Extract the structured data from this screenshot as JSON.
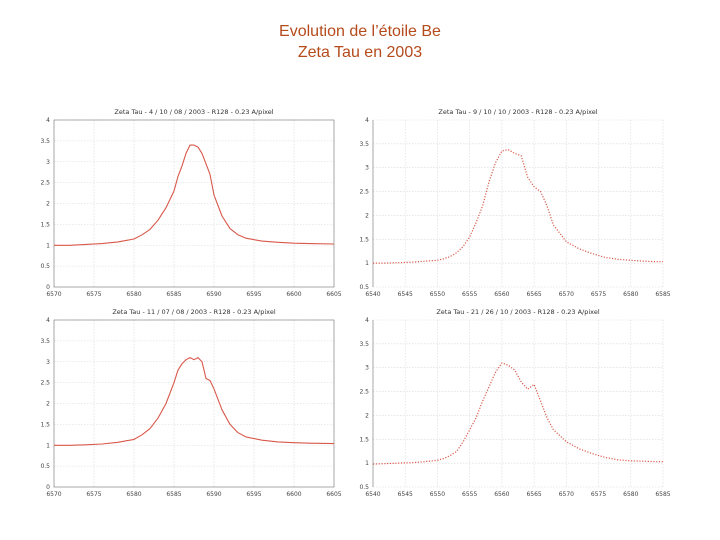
{
  "slide": {
    "title_line1": "Evolution de l’étoile Be",
    "title_line2": "Zeta Tau en 2003"
  },
  "colors": {
    "title": "#b54a1a",
    "curve": "#d9584a"
  },
  "chart_data": [
    {
      "type": "line",
      "title": "Zeta Tau - 4 / 10 / 08 / 2003 - R128 - 0.23 A/pixel",
      "xlabel": "",
      "ylabel": "",
      "xlim": [
        6570,
        6605
      ],
      "ylim": [
        0,
        4
      ],
      "xticks": [
        "6570",
        "6575",
        "6580",
        "6585",
        "6590",
        "6595",
        "6600",
        "6605"
      ],
      "yticks": [
        "0",
        "0.5",
        "1",
        "1.5",
        "2",
        "2.5",
        "3",
        "3.5",
        "4"
      ],
      "grid": true,
      "frame": "box",
      "line_style": "solid",
      "x": [
        6570,
        6572,
        6574,
        6576,
        6578,
        6580,
        6581,
        6582,
        6583,
        6584,
        6585,
        6585.5,
        6586,
        6586.5,
        6587,
        6587.5,
        6588,
        6588.5,
        6589,
        6589.5,
        6590,
        6591,
        6592,
        6593,
        6594,
        6596,
        6598,
        6600,
        6602,
        6605
      ],
      "y": [
        1.0,
        1.0,
        1.02,
        1.04,
        1.08,
        1.15,
        1.25,
        1.38,
        1.6,
        1.9,
        2.3,
        2.65,
        2.9,
        3.2,
        3.4,
        3.4,
        3.35,
        3.2,
        2.95,
        2.7,
        2.2,
        1.7,
        1.4,
        1.25,
        1.17,
        1.1,
        1.07,
        1.05,
        1.04,
        1.03
      ]
    },
    {
      "type": "line",
      "title": "Zeta Tau - 9 / 10 / 10 / 2003 - R128 - 0.23 A/pixel",
      "xlabel": "",
      "ylabel": "",
      "xlim": [
        6540,
        6585
      ],
      "ylim": [
        0.5,
        4
      ],
      "xticks": [
        "6540",
        "6545",
        "6550",
        "6555",
        "6560",
        "6565",
        "6570",
        "6575",
        "6580",
        "6585"
      ],
      "yticks": [
        "0.5",
        "1",
        "1.5",
        "2",
        "2.5",
        "3",
        "3.5",
        "4"
      ],
      "grid": true,
      "frame": "left",
      "line_style": "dotted",
      "x": [
        6540,
        6542,
        6544,
        6546,
        6548,
        6550,
        6551,
        6552,
        6553,
        6554,
        6555,
        6556,
        6557,
        6558,
        6559,
        6560,
        6561,
        6562,
        6563,
        6564,
        6565,
        6566,
        6567,
        6568,
        6570,
        6572,
        6574,
        6576,
        6578,
        6580,
        6582,
        6584,
        6585
      ],
      "y": [
        1.0,
        1.0,
        1.01,
        1.02,
        1.04,
        1.06,
        1.09,
        1.14,
        1.22,
        1.35,
        1.55,
        1.85,
        2.2,
        2.7,
        3.1,
        3.35,
        3.38,
        3.3,
        3.25,
        2.8,
        2.6,
        2.5,
        2.2,
        1.8,
        1.45,
        1.3,
        1.2,
        1.12,
        1.08,
        1.06,
        1.04,
        1.03,
        1.03
      ]
    },
    {
      "type": "line",
      "title": "Zeta Tau - 11 / 07 / 08 / 2003 - R128 - 0.23 A/pixel",
      "xlabel": "",
      "ylabel": "",
      "xlim": [
        6570,
        6605
      ],
      "ylim": [
        0,
        4
      ],
      "xticks": [
        "6570",
        "6575",
        "6580",
        "6585",
        "6590",
        "6595",
        "6600",
        "6605"
      ],
      "yticks": [
        "0",
        "0.5",
        "1",
        "1.5",
        "2",
        "2.5",
        "3",
        "3.5",
        "4"
      ],
      "grid": true,
      "frame": "box",
      "line_style": "solid",
      "x": [
        6570,
        6572,
        6574,
        6576,
        6578,
        6580,
        6581,
        6582,
        6583,
        6584,
        6585,
        6585.5,
        6586,
        6586.5,
        6587,
        6587.5,
        6588,
        6588.5,
        6589,
        6589.5,
        6590,
        6591,
        6592,
        6593,
        6594,
        6596,
        6598,
        6600,
        6602,
        6605
      ],
      "y": [
        1.0,
        1.0,
        1.01,
        1.03,
        1.07,
        1.14,
        1.25,
        1.4,
        1.65,
        2.0,
        2.5,
        2.8,
        2.95,
        3.05,
        3.1,
        3.05,
        3.1,
        3.0,
        2.6,
        2.55,
        2.35,
        1.85,
        1.5,
        1.3,
        1.2,
        1.12,
        1.08,
        1.06,
        1.05,
        1.04
      ]
    },
    {
      "type": "line",
      "title": "Zeta Tau - 21 / 26 / 10 / 2003 - R128 - 0.23 A/pixel",
      "xlabel": "",
      "ylabel": "",
      "xlim": [
        6540,
        6585
      ],
      "ylim": [
        0.5,
        4
      ],
      "xticks": [
        "6540",
        "6545",
        "6550",
        "6555",
        "6560",
        "6565",
        "6570",
        "6575",
        "6580",
        "6585"
      ],
      "yticks": [
        "0.5",
        "1",
        "1.5",
        "2",
        "2.5",
        "3",
        "3.5",
        "4"
      ],
      "grid": true,
      "frame": "left",
      "line_style": "dotted",
      "x": [
        6540,
        6542,
        6544,
        6546,
        6548,
        6550,
        6551,
        6552,
        6553,
        6554,
        6555,
        6556,
        6557,
        6558,
        6559,
        6560,
        6561,
        6562,
        6563,
        6564,
        6565,
        6566,
        6567,
        6568,
        6570,
        6572,
        6574,
        6576,
        6578,
        6580,
        6582,
        6584,
        6585
      ],
      "y": [
        0.98,
        0.99,
        1.0,
        1.01,
        1.03,
        1.06,
        1.1,
        1.16,
        1.25,
        1.45,
        1.7,
        1.95,
        2.3,
        2.6,
        2.9,
        3.1,
        3.05,
        2.95,
        2.7,
        2.55,
        2.65,
        2.3,
        1.95,
        1.7,
        1.45,
        1.3,
        1.2,
        1.12,
        1.07,
        1.05,
        1.04,
        1.03,
        1.03
      ]
    }
  ]
}
